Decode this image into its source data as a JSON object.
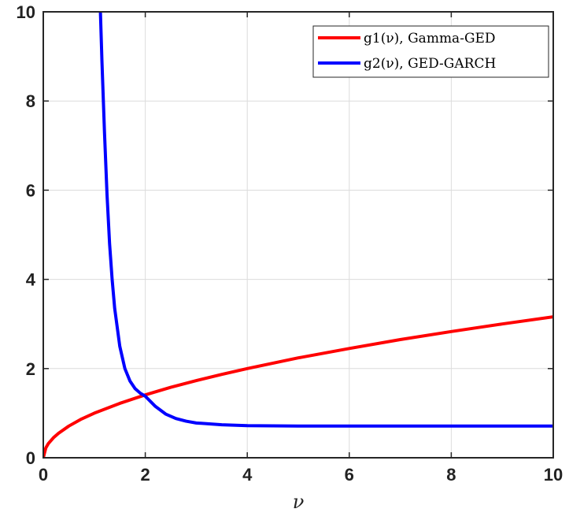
{
  "chart_data": {
    "type": "line",
    "title": "",
    "xlabel": "ν",
    "ylabel": "",
    "xlim": [
      0,
      10
    ],
    "ylim": [
      0,
      10
    ],
    "x_ticks": [
      "0",
      "2",
      "4",
      "6",
      "8",
      "10"
    ],
    "y_ticks": [
      "0",
      "2",
      "4",
      "6",
      "8",
      "10"
    ],
    "grid": true,
    "legend_position": "top-right",
    "series": [
      {
        "name": "g1(ν), Gamma-GED",
        "color": "#ff0000",
        "x": [
          0,
          0.05,
          0.1,
          0.2,
          0.3,
          0.5,
          0.75,
          1,
          1.5,
          2,
          2.5,
          3,
          3.5,
          4,
          5,
          6,
          7,
          8,
          9,
          10
        ],
        "y": [
          0,
          0.22,
          0.32,
          0.45,
          0.55,
          0.71,
          0.87,
          1.0,
          1.22,
          1.41,
          1.58,
          1.73,
          1.87,
          2.0,
          2.24,
          2.45,
          2.65,
          2.83,
          3.0,
          3.16
        ]
      },
      {
        "name": "g2(ν), GED-GARCH",
        "color": "#0000ff",
        "x": [
          1.12,
          1.15,
          1.2,
          1.25,
          1.3,
          1.35,
          1.4,
          1.5,
          1.6,
          1.7,
          1.8,
          1.9,
          2.0,
          2.2,
          2.4,
          2.6,
          2.8,
          3.0,
          3.5,
          4,
          5,
          6,
          7,
          8,
          9,
          10
        ],
        "y": [
          10,
          8.9,
          7.3,
          5.9,
          4.8,
          4.0,
          3.35,
          2.5,
          2.0,
          1.72,
          1.55,
          1.45,
          1.38,
          1.15,
          0.98,
          0.88,
          0.82,
          0.78,
          0.74,
          0.72,
          0.71,
          0.71,
          0.71,
          0.71,
          0.71,
          0.71
        ]
      }
    ]
  }
}
